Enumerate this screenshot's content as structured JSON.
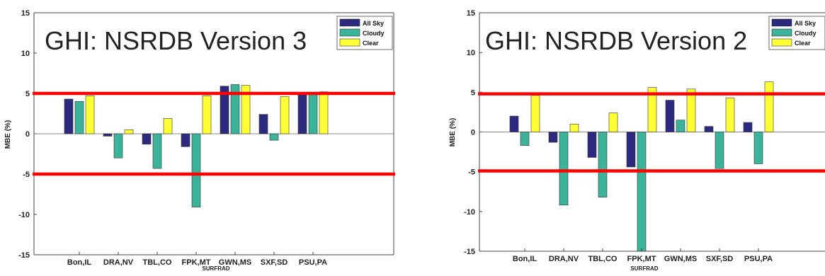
{
  "chart_data": [
    {
      "type": "bar",
      "title": "GHI: NSRDB Version 3",
      "xlabel": "SURFRAD",
      "ylabel": "MBE (%)",
      "ylim": [
        -15,
        15
      ],
      "yticks": [
        -15,
        -10,
        -5,
        0,
        5,
        10,
        15
      ],
      "categories": [
        "Bon,IL",
        "DRA,NV",
        "TBL,CO",
        "FPK,MT",
        "GWN,MS",
        "SXF,SD",
        "PSU,PA"
      ],
      "series": [
        {
          "name": "All Sky",
          "color": "#2b2a7e",
          "values": [
            4.3,
            -0.3,
            -1.3,
            -1.6,
            5.9,
            2.4,
            5.0
          ]
        },
        {
          "name": "Cloudy",
          "color": "#3bb39a",
          "values": [
            4.0,
            -3.0,
            -4.3,
            -9.1,
            6.1,
            -0.8,
            5.0
          ]
        },
        {
          "name": "Clear",
          "color": "#ffff33",
          "values": [
            4.7,
            0.5,
            1.9,
            4.7,
            6.0,
            4.6,
            5.2
          ]
        }
      ],
      "reference_lines": [
        5,
        -5
      ],
      "reference_line_color": "#ff0000",
      "legend_position": "top-right",
      "grid": false
    },
    {
      "type": "bar",
      "title": "GHI: NSRDB Version 2",
      "xlabel": "SURFRAD",
      "ylabel": "MBE (%)",
      "ylim": [
        -15,
        15
      ],
      "yticks": [
        -15,
        -10,
        -5,
        0,
        5,
        10,
        15
      ],
      "categories": [
        "Bon,IL",
        "DRA,NV",
        "TBL,CO",
        "FPK,MT",
        "GWN,MS",
        "SXF,SD",
        "PSU,PA"
      ],
      "series": [
        {
          "name": "All Sky",
          "color": "#2b2a7e",
          "values": [
            2.0,
            -1.3,
            -3.2,
            -4.4,
            4.0,
            0.7,
            1.2
          ]
        },
        {
          "name": "Cloudy",
          "color": "#3bb39a",
          "values": [
            -1.7,
            -9.2,
            -8.2,
            -15.0,
            1.5,
            -4.6,
            -4.0
          ]
        },
        {
          "name": "Clear",
          "color": "#ffff33",
          "values": [
            4.6,
            1.0,
            2.4,
            5.6,
            5.4,
            4.3,
            6.3
          ]
        }
      ],
      "reference_lines": [
        4.8,
        -4.9
      ],
      "reference_line_color": "#ff0000",
      "legend_position": "top-right",
      "grid": false
    }
  ]
}
